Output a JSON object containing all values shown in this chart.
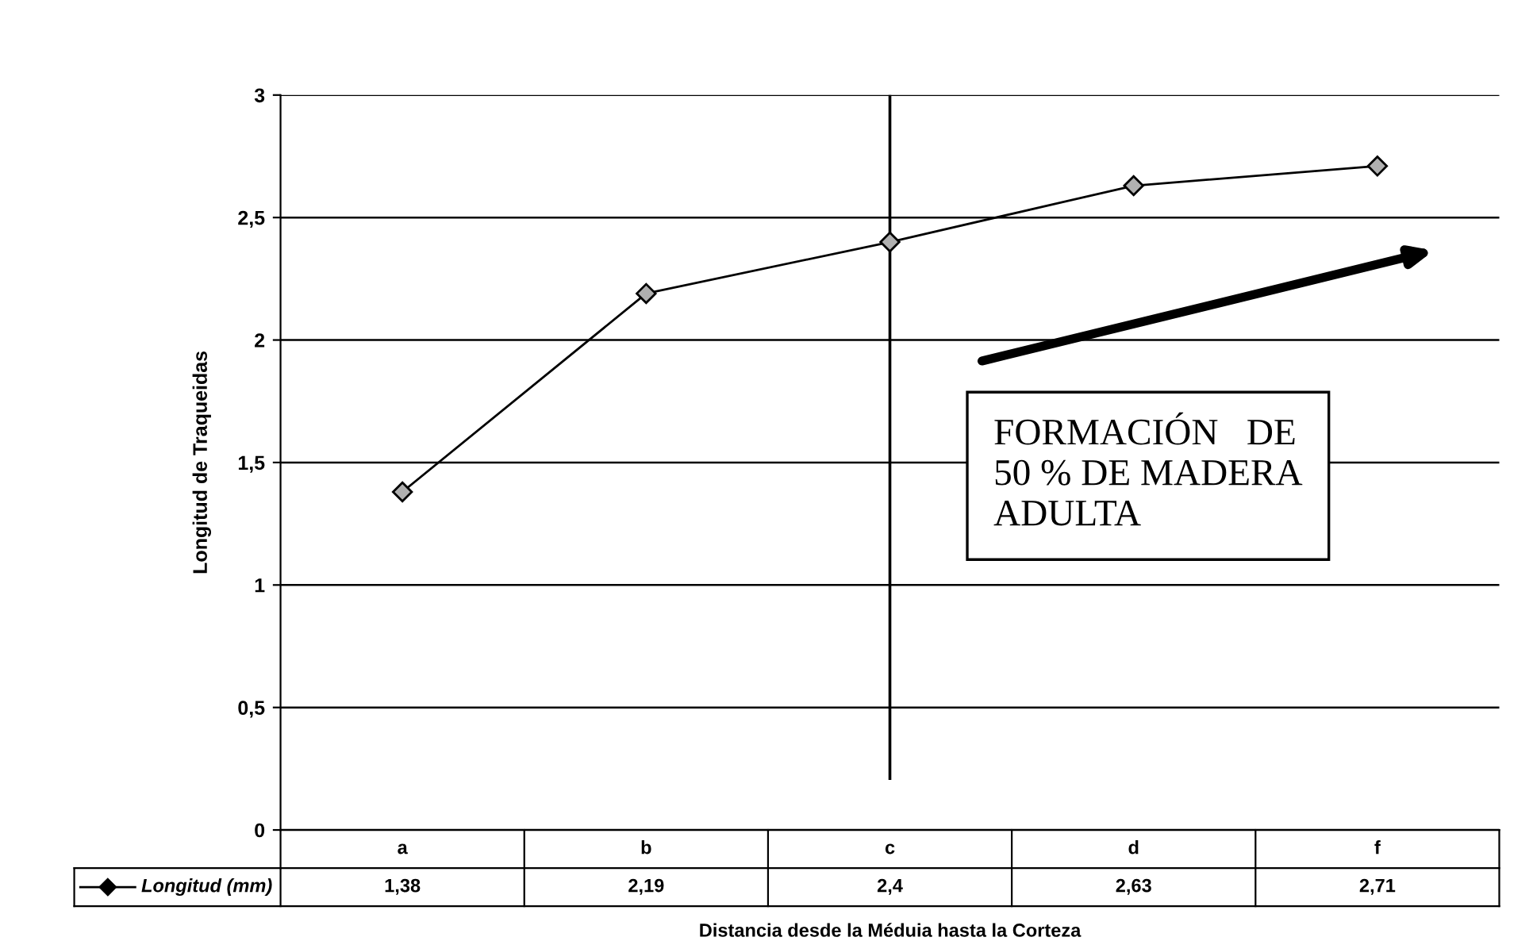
{
  "chart_data": {
    "type": "line",
    "xlabel": "Distancia desde la Méduia hasta la Corteza",
    "ylabel": "Longitud de Traqueidas",
    "categories": [
      "a",
      "b",
      "c",
      "d",
      "f"
    ],
    "series": [
      {
        "name": "Longitud (mm)",
        "color": "#000000",
        "values": [
          1.38,
          2.19,
          2.4,
          2.63,
          2.71
        ],
        "value_labels": [
          "1,38",
          "2,19",
          "2,4",
          "2,63",
          "2,71"
        ]
      }
    ],
    "ylim": [
      0,
      3
    ],
    "yticks": [
      0,
      {
        "value": 0.5,
        "label": "0,5"
      },
      1,
      {
        "value": 1.5,
        "label": "1,5"
      },
      2,
      {
        "value": 2.5,
        "label": "2,5"
      },
      3
    ],
    "grid": "y",
    "marker": "diamond",
    "line_style": "solid",
    "legend": "bottom",
    "ref_lines": [
      {
        "axis": "x",
        "value": "c",
        "color": "#000000"
      }
    ],
    "annotations": [
      "FORMACIÓN   DE\n50 % DE MADERA\nADULTA"
    ]
  }
}
